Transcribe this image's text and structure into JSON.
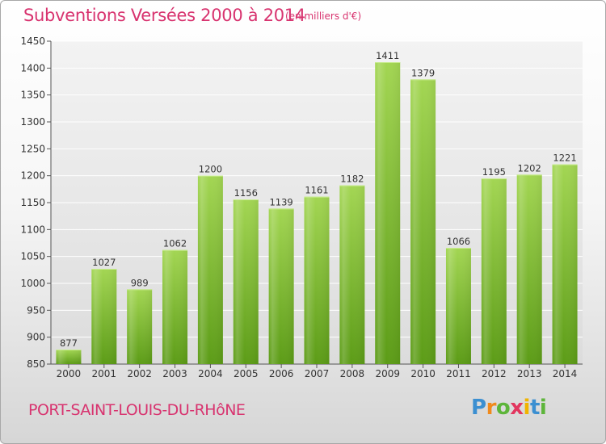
{
  "header": {
    "title": "Subventions Versées 2000 à 2014",
    "unit_note": "(en milliers d'€)"
  },
  "footer": {
    "place": "PORT-SAINT-LOUIS-DU-RHôNE",
    "logo_letters": [
      "P",
      "r",
      "o",
      "x",
      "i",
      "t",
      "i"
    ]
  },
  "colors": {
    "accent": "#d8336f",
    "bar_light": "#9fd44f",
    "bar_dark": "#5f9e1a"
  },
  "chart_data": {
    "type": "bar",
    "categories": [
      "2000",
      "2001",
      "2002",
      "2003",
      "2004",
      "2005",
      "2006",
      "2007",
      "2008",
      "2009",
      "2010",
      "2011",
      "2012",
      "2013",
      "2014"
    ],
    "values": [
      877,
      1027,
      989,
      1062,
      1200,
      1156,
      1139,
      1161,
      1182,
      1411,
      1379,
      1066,
      1195,
      1202,
      1221
    ],
    "title": "Subventions Versées 2000 à 2014",
    "ylim": [
      850,
      1450
    ],
    "yticks": [
      850,
      900,
      950,
      1000,
      1050,
      1100,
      1150,
      1200,
      1250,
      1300,
      1350,
      1400,
      1450
    ],
    "grid": true,
    "legend": "none"
  }
}
